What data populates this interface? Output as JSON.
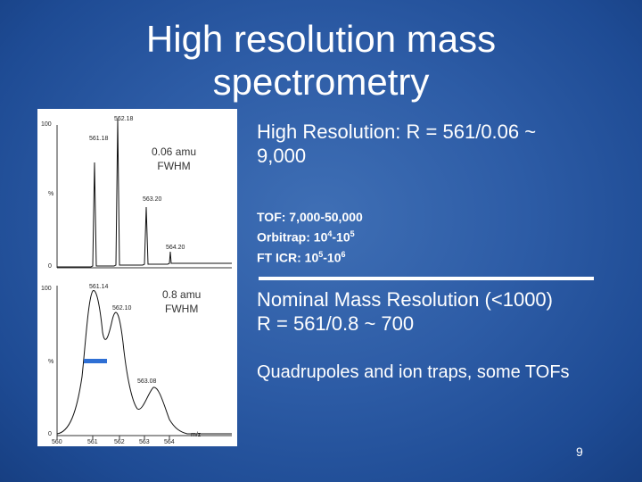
{
  "slide": {
    "title_line1": "High resolution mass",
    "title_line2": "spectrometry",
    "page_number": "9"
  },
  "spectrum": {
    "top_panel": {
      "y_top": "100",
      "y_mid": "%",
      "y_zero": "0",
      "peak_labels": [
        "562.18",
        "561.18",
        "563.20",
        "564.20"
      ],
      "annotation_line1": "0.06 amu",
      "annotation_line2": "FWHM"
    },
    "bottom_panel": {
      "y_top": "100",
      "y_mid": "%",
      "y_zero": "0",
      "peak_labels": [
        "561.14",
        "562.10",
        "563.08"
      ],
      "annotation_line1": "0.8 amu",
      "annotation_line2": "FWHM"
    },
    "x_ticks": [
      "560",
      "561",
      "562",
      "563",
      "564"
    ],
    "x_unit": "m/z"
  },
  "content": {
    "high_res_line1": "High Resolution: R = 561/0.06 ~",
    "high_res_line2": "9,000",
    "tof_label": "TOF: 7,000-50,000",
    "orbitrap_prefix": "Orbitrap: 10",
    "orbitrap_exp1": "4",
    "orbitrap_mid": "-10",
    "orbitrap_exp2": "5",
    "fticr_prefix": "FT ICR: 10",
    "fticr_exp1": "5",
    "fticr_mid": "-10",
    "fticr_exp2": "6",
    "nominal_line1": "Nominal Mass Resolution (<1000)",
    "nominal_line2": "R = 561/0.8 ~ 700",
    "quad_line": "Quadrupoles and ion traps, some TOFs"
  },
  "colors": {
    "background": "#2d5ca6",
    "text": "#ffffff",
    "marker": "#cc3366",
    "fwhm_bar": "#2e6fd4"
  }
}
